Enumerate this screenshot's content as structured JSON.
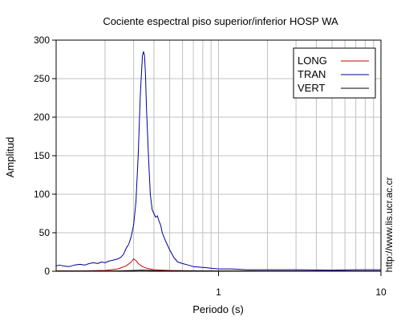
{
  "chart_data": {
    "type": "line",
    "title": "Cociente espectral piso superior/inferior  HOSP WA",
    "xlabel": "Periodo (s)",
    "ylabel": "Amplitud",
    "xscale": "log",
    "xlim": [
      0.1,
      10
    ],
    "ylim": [
      0,
      300
    ],
    "yticks": [
      0,
      50,
      100,
      150,
      200,
      250,
      300
    ],
    "xticks_labeled": [
      1,
      10
    ],
    "xtick_labels": [
      "1",
      "10"
    ],
    "grid": true,
    "legend_position": "top-right",
    "side_note": "http://www.lis.ucr.ac.cr",
    "series": [
      {
        "name": "LONG",
        "color": "#cc0000",
        "x": [
          0.1,
          0.15,
          0.2,
          0.24,
          0.27,
          0.29,
          0.3,
          0.31,
          0.32,
          0.34,
          0.36,
          0.4,
          0.45,
          0.5,
          0.6,
          0.8,
          1.0,
          2.0,
          5.0,
          10.0
        ],
        "y": [
          0.5,
          0.5,
          1,
          3,
          7,
          12,
          16,
          14,
          10,
          6,
          4,
          2,
          1.5,
          1,
          0.8,
          0.5,
          0.4,
          0.3,
          0.2,
          0.2
        ]
      },
      {
        "name": "TRAN",
        "color": "#000099",
        "x": [
          0.1,
          0.105,
          0.11,
          0.12,
          0.13,
          0.14,
          0.15,
          0.16,
          0.17,
          0.18,
          0.19,
          0.2,
          0.21,
          0.22,
          0.23,
          0.24,
          0.25,
          0.26,
          0.27,
          0.28,
          0.29,
          0.3,
          0.31,
          0.32,
          0.33,
          0.34,
          0.345,
          0.35,
          0.355,
          0.36,
          0.37,
          0.38,
          0.39,
          0.4,
          0.41,
          0.42,
          0.43,
          0.44,
          0.45,
          0.47,
          0.5,
          0.53,
          0.56,
          0.6,
          0.65,
          0.7,
          0.8,
          0.9,
          1.0,
          1.2,
          1.5,
          2.0,
          3.0,
          5.0,
          7.0,
          10.0
        ],
        "y": [
          7,
          8,
          7,
          6,
          8,
          9,
          8,
          10,
          11,
          10,
          12,
          11,
          13,
          14,
          15,
          16,
          18,
          22,
          30,
          35,
          45,
          60,
          90,
          150,
          230,
          280,
          285,
          280,
          255,
          210,
          150,
          100,
          80,
          75,
          70,
          72,
          65,
          60,
          50,
          40,
          28,
          18,
          12,
          10,
          8,
          6,
          5,
          4,
          3,
          3,
          2,
          2,
          2,
          1.5,
          2,
          2
        ]
      },
      {
        "name": "VERT",
        "color": "#000000",
        "x": [
          0.1,
          0.2,
          0.25,
          0.3,
          0.33,
          0.36,
          0.4,
          0.5,
          1.0,
          2.0,
          5.0,
          10.0
        ],
        "y": [
          0.2,
          0.3,
          0.5,
          1,
          1.5,
          1.2,
          0.8,
          0.5,
          0.3,
          0.2,
          0.2,
          0.2
        ]
      }
    ]
  }
}
